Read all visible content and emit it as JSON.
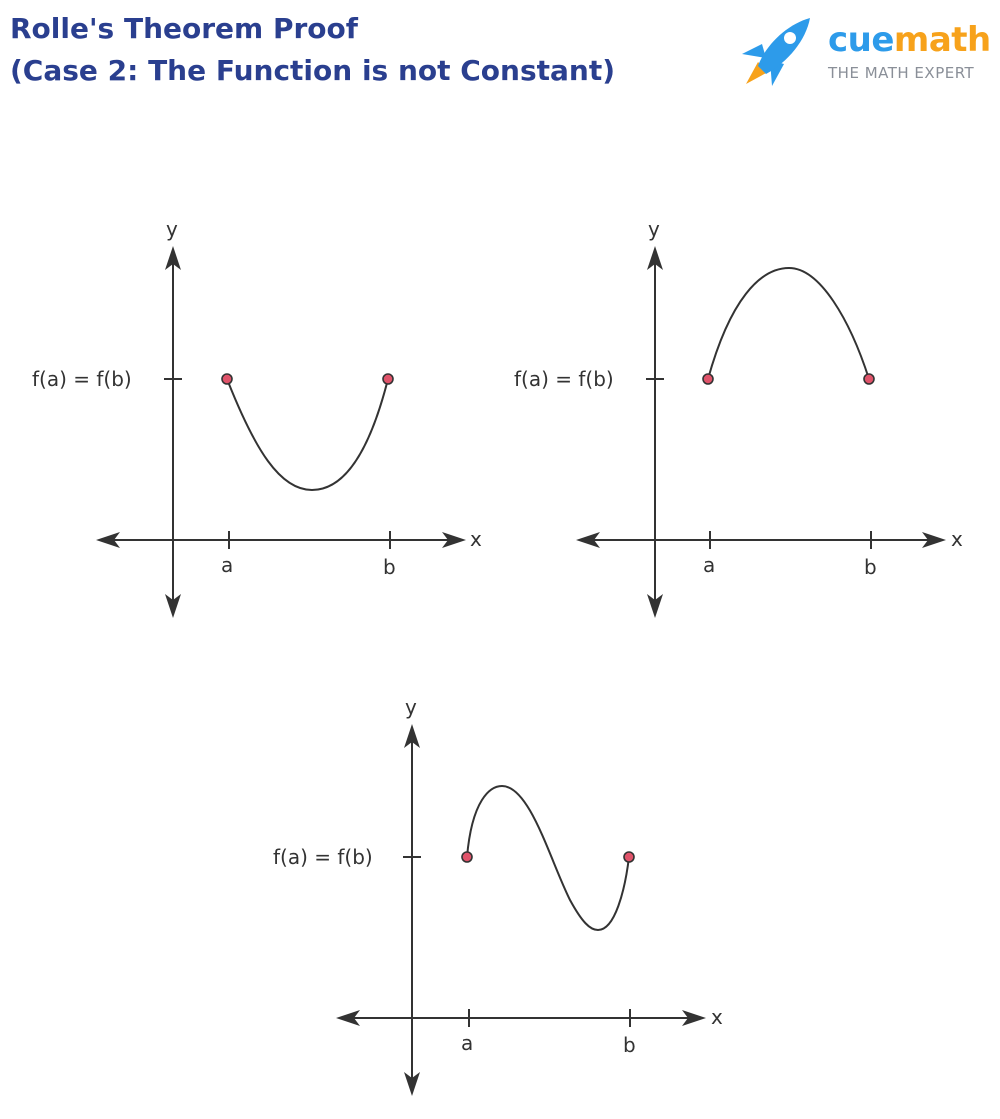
{
  "title": {
    "line1": "Rolle's Theorem Proof",
    "line2": "(Case 2:  The Function is not Constant)"
  },
  "logo": {
    "word_part1": "cue",
    "word_part2": "math",
    "tagline": "THE MATH EXPERT",
    "icon": "rocket-icon",
    "colors": {
      "blue": "#2d9bea",
      "orange": "#f7a21b"
    }
  },
  "graphs": [
    {
      "shape": "valley",
      "x_axis_label": "x",
      "y_axis_label": "y",
      "tick_a": "a",
      "tick_b": "b",
      "level_label": "f(a) = f(b)"
    },
    {
      "shape": "hill",
      "x_axis_label": "x",
      "y_axis_label": "y",
      "tick_a": "a",
      "tick_b": "b",
      "level_label": "f(a) = f(b)"
    },
    {
      "shape": "wave",
      "x_axis_label": "x",
      "y_axis_label": "y",
      "tick_a": "a",
      "tick_b": "b",
      "level_label": "f(a) = f(b)"
    }
  ],
  "colors": {
    "title": "#2a3f8f",
    "endpoint": "#e0536a",
    "line": "#333333"
  }
}
